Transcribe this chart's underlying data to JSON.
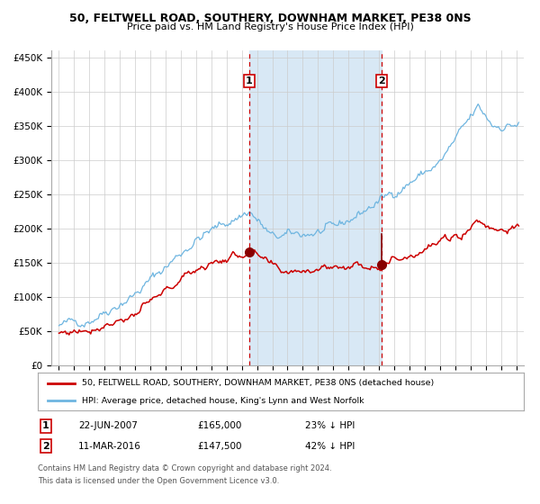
{
  "title": "50, FELTWELL ROAD, SOUTHERY, DOWNHAM MARKET, PE38 0NS",
  "subtitle": "Price paid vs. HM Land Registry's House Price Index (HPI)",
  "legend_line1": "50, FELTWELL ROAD, SOUTHERY, DOWNHAM MARKET, PE38 0NS (detached house)",
  "legend_line2": "HPI: Average price, detached house, King's Lynn and West Norfolk",
  "annotation1_label": "1",
  "annotation1_date": "22-JUN-2007",
  "annotation1_price": "£165,000",
  "annotation1_hpi": "23% ↓ HPI",
  "annotation2_label": "2",
  "annotation2_date": "11-MAR-2016",
  "annotation2_price": "£147,500",
  "annotation2_hpi": "42% ↓ HPI",
  "vline1_x": 2007.47,
  "vline2_x": 2016.19,
  "dot1_x": 2007.47,
  "dot1_y": 165000,
  "dot2_x": 2016.19,
  "dot2_y": 147500,
  "dot2_top_y": 192000,
  "shade_x1": 2007.47,
  "shade_x2": 2016.19,
  "ylim": [
    0,
    460000
  ],
  "xlim": [
    1994.5,
    2025.5
  ],
  "hpi_color": "#6EB5E0",
  "price_color": "#CC0000",
  "dot_color": "#880000",
  "vline_color": "#CC0000",
  "shade_color": "#D8E8F5",
  "grid_color": "#cccccc",
  "background_color": "#ffffff",
  "footnote_line1": "Contains HM Land Registry data © Crown copyright and database right 2024.",
  "footnote_line2": "This data is licensed under the Open Government Licence v3.0."
}
